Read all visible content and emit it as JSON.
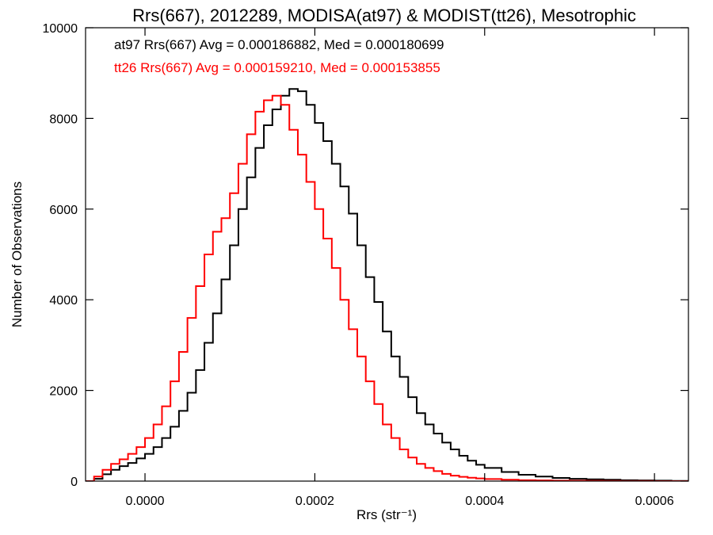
{
  "colors": {
    "background": "#ffffff",
    "axes": "#000000",
    "at97": "#000000",
    "tt26": "#ff0000"
  },
  "chart_data": {
    "type": "line",
    "title": "Rrs(667), 2012289, MODISA(at97) & MODIST(tt26), Mesotrophic",
    "xlabel": "Rrs (str⁻¹)",
    "ylabel": "Number of Observations",
    "xlim": [
      -7e-05,
      0.00064
    ],
    "ylim": [
      0,
      10000
    ],
    "x_ticks": [
      0.0,
      0.0002,
      0.0004,
      0.0006
    ],
    "x_tick_labels": [
      "0.0000",
      "0.0002",
      "0.0004",
      "0.0006"
    ],
    "y_ticks": [
      0,
      2000,
      4000,
      6000,
      8000,
      10000
    ],
    "y_tick_labels": [
      "0",
      "2000",
      "4000",
      "6000",
      "8000",
      "10000"
    ],
    "grid": false,
    "step_style": true,
    "annotations": [
      {
        "text": "at97 Rrs(667) Avg = 0.000186882, Med = 0.000180699",
        "color": "#000000"
      },
      {
        "text": "tt26 Rrs(667) Avg = 0.000159210, Med = 0.000153855",
        "color": "#ff0000"
      }
    ],
    "series": [
      {
        "color": "#000000",
        "x": [
          -7e-05,
          -6e-05,
          -5e-05,
          -4e-05,
          -3e-05,
          -2e-05,
          -1e-05,
          0.0,
          1e-05,
          2e-05,
          3e-05,
          4e-05,
          5e-05,
          6e-05,
          7e-05,
          8e-05,
          9e-05,
          0.0001,
          0.00011,
          0.00012,
          0.00013,
          0.00014,
          0.00015,
          0.00016,
          0.00017,
          0.00018,
          0.00019,
          0.0002,
          0.00021,
          0.00022,
          0.00023,
          0.00024,
          0.00025,
          0.00026,
          0.00027,
          0.00028,
          0.00029,
          0.0003,
          0.00031,
          0.00032,
          0.00033,
          0.00034,
          0.00035,
          0.00036,
          0.00037,
          0.00038,
          0.00039,
          0.0004,
          0.00042,
          0.00044,
          0.00046,
          0.00048,
          0.0005,
          0.00052,
          0.00054,
          0.00056,
          0.00058,
          0.0006,
          0.00062,
          0.00064
        ],
        "y": [
          0,
          50,
          150,
          250,
          330,
          400,
          500,
          600,
          750,
          950,
          1200,
          1550,
          1950,
          2450,
          3050,
          3700,
          4450,
          5200,
          6000,
          6700,
          7350,
          7850,
          8200,
          8500,
          8650,
          8600,
          8300,
          7900,
          7500,
          7000,
          6500,
          5900,
          5200,
          4500,
          3950,
          3300,
          2750,
          2300,
          1850,
          1500,
          1250,
          1050,
          850,
          700,
          560,
          450,
          360,
          290,
          200,
          140,
          100,
          70,
          50,
          40,
          30,
          20,
          15,
          10,
          5,
          0
        ]
      },
      {
        "color": "#ff0000",
        "x": [
          -7e-05,
          -6e-05,
          -5e-05,
          -4e-05,
          -3e-05,
          -2e-05,
          -1e-05,
          0.0,
          1e-05,
          2e-05,
          3e-05,
          4e-05,
          5e-05,
          6e-05,
          7e-05,
          8e-05,
          9e-05,
          0.0001,
          0.00011,
          0.00012,
          0.00013,
          0.00014,
          0.00015,
          0.00016,
          0.00017,
          0.00018,
          0.00019,
          0.0002,
          0.00021,
          0.00022,
          0.00023,
          0.00024,
          0.00025,
          0.00026,
          0.00027,
          0.00028,
          0.00029,
          0.0003,
          0.00031,
          0.00032,
          0.00033,
          0.00034,
          0.00035,
          0.00036,
          0.00037,
          0.00038,
          0.00039,
          0.0004,
          0.00042,
          0.00044,
          0.00046,
          0.00048,
          0.0005,
          0.00052,
          0.00054,
          0.00056,
          0.00058,
          0.0006,
          0.00062,
          0.00064
        ],
        "y": [
          0,
          100,
          250,
          380,
          480,
          600,
          750,
          950,
          1250,
          1650,
          2200,
          2850,
          3600,
          4300,
          5000,
          5500,
          5800,
          6350,
          7000,
          7650,
          8150,
          8400,
          8500,
          8300,
          7750,
          7200,
          6600,
          6000,
          5350,
          4700,
          4000,
          3350,
          2750,
          2200,
          1700,
          1250,
          950,
          700,
          520,
          380,
          290,
          220,
          160,
          120,
          95,
          75,
          60,
          45,
          30,
          20,
          15,
          10,
          8,
          6,
          4,
          3,
          2,
          1,
          0,
          0
        ]
      }
    ]
  }
}
